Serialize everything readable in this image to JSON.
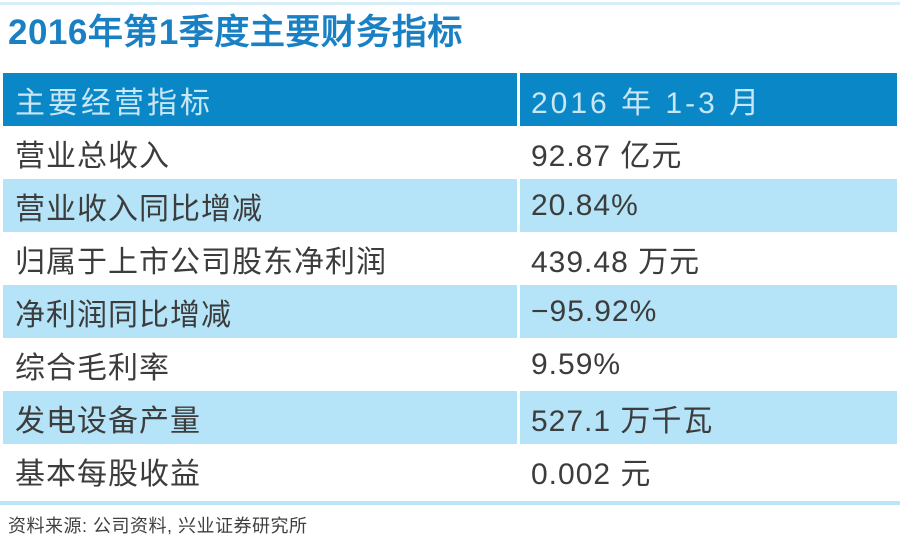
{
  "title": "2016年第1季度主要财务指标",
  "table": {
    "header": {
      "col1": "主要经营指标",
      "col2": "2016 年 1-3 月"
    },
    "rows": [
      {
        "label": "营业总收入",
        "value": "92.87 亿元"
      },
      {
        "label": "营业收入同比增减",
        "value": "20.84%"
      },
      {
        "label": "归属于上市公司股东净利润",
        "value": "439.48 万元"
      },
      {
        "label": "净利润同比增减",
        "value": "−95.92%"
      },
      {
        "label": "综合毛利率",
        "value": "9.59%"
      },
      {
        "label": "发电设备产量",
        "value": "527.1 万千瓦"
      },
      {
        "label": "基本每股收益",
        "value": "0.002 元"
      }
    ]
  },
  "footer": {
    "source": "资料来源: 公司资料, 兴业证券研究所"
  },
  "colors": {
    "title": "#1a80c4",
    "header_bg": "#0987c7",
    "header_text": "#c8e6f4",
    "alt_row_bg": "#b5e4f8",
    "body_text": "#3c3c3c",
    "top_rule": "#d8edfa",
    "bottom_rule": "#bce5f8"
  },
  "chart_data": {
    "type": "table",
    "title": "2016年第1季度主要财务指标",
    "columns": [
      "主要经营指标",
      "2016 年 1-3 月"
    ],
    "rows": [
      [
        "营业总收入",
        "92.87 亿元"
      ],
      [
        "营业收入同比增减",
        "20.84%"
      ],
      [
        "归属于上市公司股东净利润",
        "439.48 万元"
      ],
      [
        "净利润同比增减",
        "−95.92%"
      ],
      [
        "综合毛利率",
        "9.59%"
      ],
      [
        "发电设备产量",
        "527.1 万千瓦"
      ],
      [
        "基本每股收益",
        "0.002 元"
      ]
    ],
    "numeric_values": {
      "operating_revenue_yi_yuan": 92.87,
      "revenue_yoy_pct": 20.84,
      "net_profit_to_shareholders_wan_yuan": 439.48,
      "net_profit_yoy_pct": -95.92,
      "gross_margin_pct": 9.59,
      "power_equipment_output_wan_kw": 527.1,
      "basic_eps_yuan": 0.002
    },
    "source": "资料来源: 公司资料, 兴业证券研究所"
  }
}
